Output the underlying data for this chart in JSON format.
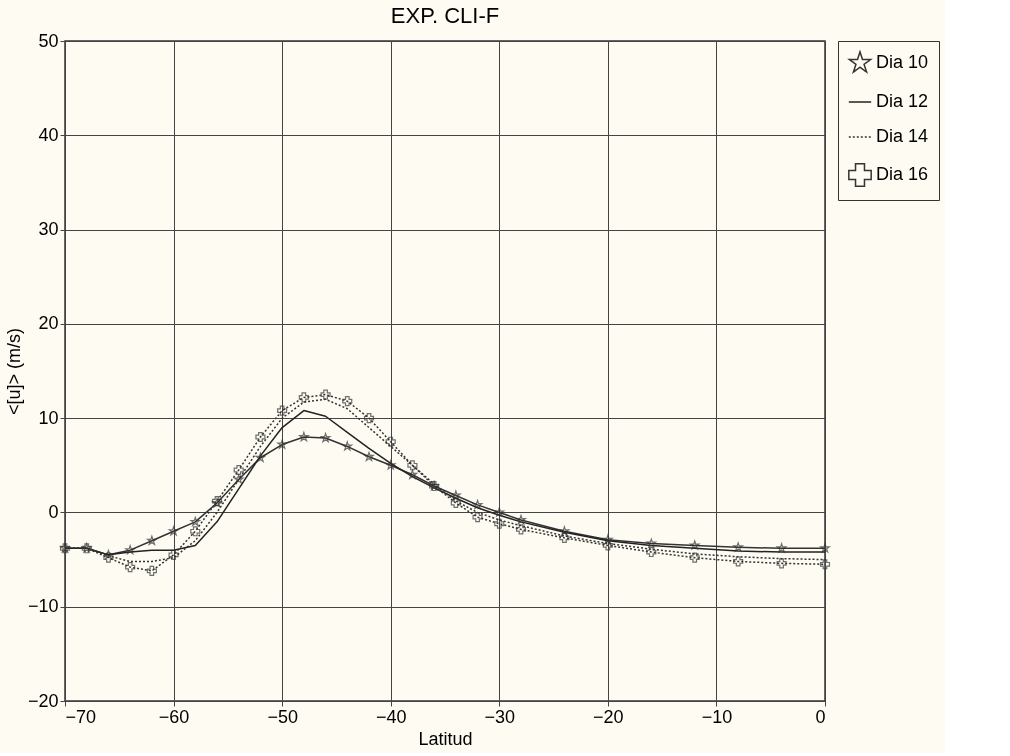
{
  "chart_data": {
    "type": "line",
    "title": "EXP. CLI-F",
    "xlabel": "Latitud",
    "ylabel": "<[u]> (m/s)",
    "x": [
      -70,
      -68,
      -66,
      -64,
      -62,
      -60,
      -58,
      -56,
      -54,
      -52,
      -50,
      -48,
      -46,
      -44,
      -42,
      -40,
      -38,
      -36,
      -34,
      -32,
      -30,
      -28,
      -24,
      -20,
      -16,
      -12,
      -8,
      -4,
      0
    ],
    "series": [
      {
        "name": "Dia 10",
        "color": "#333333",
        "marker": "star",
        "line_style": "solid",
        "values": [
          -3.8,
          -3.8,
          -4.5,
          -4,
          -3,
          -2,
          -1,
          1,
          3.5,
          5.8,
          7.2,
          8,
          7.9,
          7,
          5.9,
          5,
          4,
          2.8,
          1.8,
          0.8,
          0,
          -0.8,
          -2,
          -2.9,
          -3.3,
          -3.5,
          -3.7,
          -3.8,
          -3.8
        ]
      },
      {
        "name": "Dia 12",
        "color": "#222222",
        "marker": "none",
        "line_style": "solid",
        "values": [
          -3.8,
          -3.8,
          -4.5,
          -4.2,
          -4,
          -4,
          -3.5,
          -1,
          2.5,
          6,
          9,
          10.8,
          10.2,
          8.5,
          6.8,
          5.2,
          3.8,
          2.6,
          1.5,
          0.5,
          -0.3,
          -1,
          -2.1,
          -3,
          -3.5,
          -3.8,
          -4.1,
          -4.2,
          -4.2
        ]
      },
      {
        "name": "Dia 14",
        "color": "#333333",
        "marker": "none",
        "line_style": "dotted",
        "values": [
          -3.8,
          -3.8,
          -4.6,
          -5.2,
          -5.2,
          -4.8,
          -3,
          0,
          3.5,
          7,
          10,
          11.7,
          12,
          11,
          9,
          7,
          5,
          3,
          1.2,
          0,
          -0.8,
          -1.4,
          -2.5,
          -3.3,
          -3.9,
          -4.4,
          -4.7,
          -4.9,
          -5
        ]
      },
      {
        "name": "Dia 16",
        "color": "#333333",
        "marker": "cross",
        "line_style": "dotted",
        "values": [
          -3.8,
          -3.8,
          -4.8,
          -5.8,
          -6.2,
          -4.5,
          -2,
          1.2,
          4.5,
          8,
          10.8,
          12.2,
          12.5,
          11.8,
          10,
          7.5,
          5,
          2.8,
          1,
          -0.5,
          -1.2,
          -1.8,
          -2.7,
          -3.5,
          -4.2,
          -4.8,
          -5.2,
          -5.4,
          -5.5
        ]
      }
    ],
    "xlim": [
      -70,
      0
    ],
    "xticks": [
      -70,
      -60,
      -50,
      -40,
      -30,
      -20,
      -10,
      0
    ],
    "ylim": [
      -20,
      50
    ],
    "yticks": [
      -20,
      -10,
      0,
      10,
      20,
      30,
      40,
      50
    ],
    "grid": true,
    "legend": "right"
  }
}
